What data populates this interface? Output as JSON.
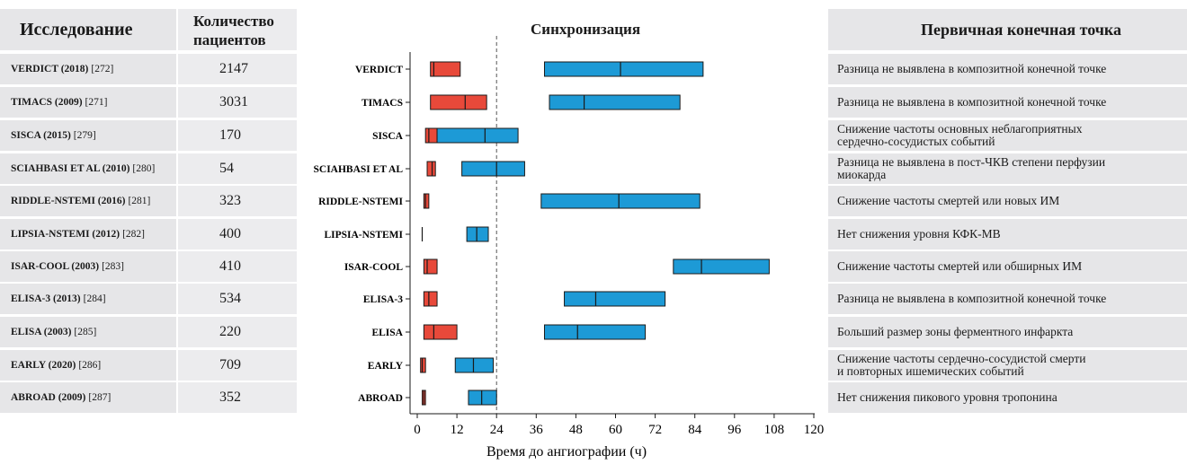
{
  "left_table": {
    "header_study": "Исследование",
    "header_patients": "Количество пациентов",
    "rows": [
      {
        "name": "VERDICT (2018)",
        "ref": "[272]",
        "patients": "2147"
      },
      {
        "name": "TIMACS (2009)",
        "ref": "[271]",
        "patients": "3031"
      },
      {
        "name": "SISCA (2015)",
        "ref": "[279]",
        "patients": "170"
      },
      {
        "name": "SCIAHBASI ET AL (2010)",
        "ref": "[280]",
        "patients": "54"
      },
      {
        "name": "RIDDLE-NSTEMI (2016)",
        "ref": "[281]",
        "patients": "323"
      },
      {
        "name": "LIPSIA-NSTEMI (2012)",
        "ref": "[282]",
        "patients": "400"
      },
      {
        "name": "ISAR-COOL (2003)",
        "ref": "[283]",
        "patients": "410"
      },
      {
        "name": "ELISA-3 (2013)",
        "ref": "[284]",
        "patients": "534"
      },
      {
        "name": "ELISA (2003)",
        "ref": "[285]",
        "patients": "220"
      },
      {
        "name": "EARLY (2020)",
        "ref": "[286]",
        "patients": "709"
      },
      {
        "name": "ABROAD (2009)",
        "ref": "[287]",
        "patients": "352"
      }
    ]
  },
  "chart_data": {
    "type": "bar",
    "title": "Синхронизация",
    "xlabel": "Время до ангиографии (ч)",
    "ylabel": "",
    "xlim": [
      0,
      120
    ],
    "xticks": [
      "0",
      "12",
      "24",
      "36",
      "48",
      "60",
      "72",
      "84",
      "96",
      "108",
      "120"
    ],
    "reference_line_x": 24,
    "grid": false,
    "colors": {
      "early": "#e8493a",
      "delayed": "#1d9ad6",
      "outline": "#1a1a1a"
    },
    "categories": [
      "VERDICT",
      "TIMACS",
      "SISCA",
      "SCIAHBASI ET AL",
      "RIDDLE-NSTEMI",
      "LIPSIA-NSTEMI",
      "ISAR-COOL",
      "ELISA-3",
      "ELISA",
      "EARLY",
      "ABROAD"
    ],
    "series": [
      {
        "group": "early",
        "values": [
          {
            "start": 4,
            "median": 5,
            "end": 13
          },
          {
            "start": 4,
            "median": 14.5,
            "end": 21
          },
          {
            "start": 2.5,
            "median": 3.5,
            "end": 6
          },
          {
            "start": 3,
            "median": 4.5,
            "end": 5.5
          },
          {
            "start": 2,
            "median": 2.5,
            "end": 3.5
          },
          {
            "start": 1.5,
            "median": 1.5,
            "end": 1.5
          },
          {
            "start": 2,
            "median": 3,
            "end": 6
          },
          {
            "start": 2,
            "median": 3.5,
            "end": 6
          },
          {
            "start": 2,
            "median": 5,
            "end": 12
          },
          {
            "start": 1,
            "median": 1.5,
            "end": 2.5
          },
          {
            "start": 1.5,
            "median": 2,
            "end": 2.5
          }
        ]
      },
      {
        "group": "delayed",
        "values": [
          {
            "start": 38.5,
            "median": 61.5,
            "end": 86.5
          },
          {
            "start": 40,
            "median": 50.5,
            "end": 79.5
          },
          {
            "start": 6,
            "median": 20.5,
            "end": 30.5
          },
          {
            "start": 13.5,
            "median": 24,
            "end": 32.5
          },
          {
            "start": 37.5,
            "median": 61,
            "end": 85.5
          },
          {
            "start": 15,
            "median": 18,
            "end": 21.5
          },
          {
            "start": 77.5,
            "median": 86,
            "end": 106.5
          },
          {
            "start": 44.5,
            "median": 54,
            "end": 75
          },
          {
            "start": 38.5,
            "median": 48.5,
            "end": 69
          },
          {
            "start": 11.5,
            "median": 17,
            "end": 23
          },
          {
            "start": 15.5,
            "median": 19.5,
            "end": 24
          }
        ]
      }
    ]
  },
  "right_table": {
    "header": "Первичная конечная точка",
    "rows": [
      [
        "Разница не выявлена в композитной конечной точке"
      ],
      [
        "Разница не выявлена в композитной конечной точке"
      ],
      [
        "Снижение частоты основных неблагоприятных",
        "сердечно-сосудистых событий"
      ],
      [
        "Разница не выявлена в пост-ЧКВ степени перфузии",
        "миокарда"
      ],
      [
        "Снижение частоты смертей или новых ИМ"
      ],
      [
        "Нет снижения уровня КФК-МВ"
      ],
      [
        "Снижение частоты смертей или обширных ИМ"
      ],
      [
        "Разница не выявлена в композитной конечной точке"
      ],
      [
        "Больший размер зоны ферментного инфаркта"
      ],
      [
        "Снижение частоты сердечно-сосудистой смерти",
        "и повторных ишемических событий"
      ],
      [
        "Нет снижения пикового уровня тропонина"
      ]
    ]
  }
}
